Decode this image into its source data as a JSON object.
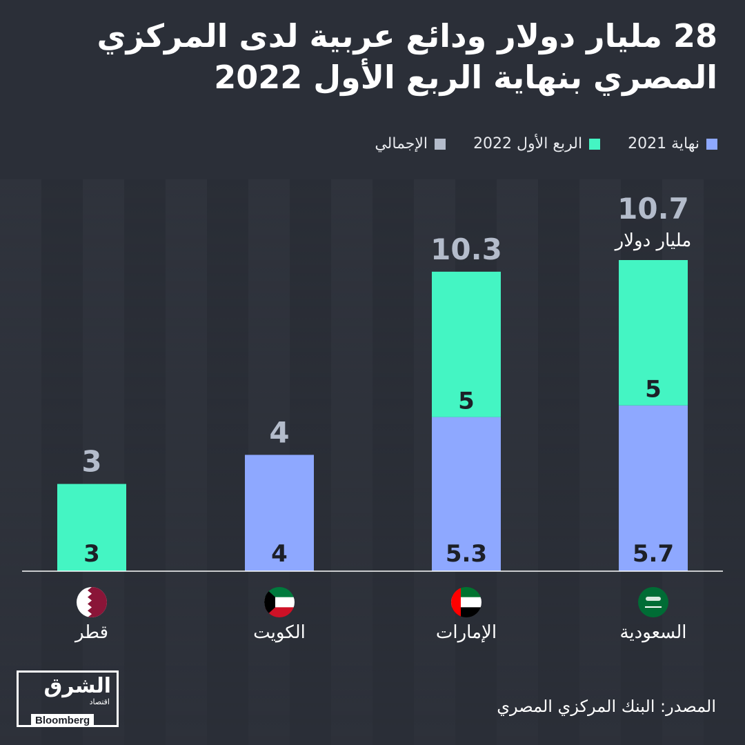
{
  "title": "28 مليار دولار ودائع عربية لدى المركزي المصري بنهاية الربع الأول 2022",
  "legend": {
    "end_2021": "نهاية 2021",
    "q1_2022": "الربع الأول 2022",
    "total": "الإجمالي"
  },
  "colors": {
    "end_2021": "#8ea8ff",
    "q1_2022": "#44f5c3",
    "total": "#b4bccb",
    "background": "#2b2f38"
  },
  "unit_label": "مليار دولار",
  "source": "المصدر: البنك المركزي المصري",
  "logo": {
    "arabic": "الشرق",
    "sub": "اقتصاد",
    "bloomberg": "Bloomberg"
  },
  "chart_data": {
    "type": "bar",
    "stacked": true,
    "categories": [
      "قطر",
      "الكويت",
      "الإمارات",
      "السعودية"
    ],
    "flags": [
      "qatar-flag",
      "kuwait-flag",
      "uae-flag",
      "saudi-flag"
    ],
    "series": [
      {
        "name": "نهاية 2021",
        "values": [
          0,
          4,
          5.3,
          5.7
        ],
        "labels": [
          "",
          "4",
          "5.3",
          "5.7"
        ]
      },
      {
        "name": "الربع الأول 2022",
        "values": [
          3,
          0,
          5,
          5
        ],
        "labels": [
          "3",
          "",
          "5",
          "5"
        ]
      }
    ],
    "totals": [
      3,
      4,
      10.3,
      10.7
    ],
    "total_labels": [
      "3",
      "4",
      "10.3",
      "10.7"
    ],
    "ylim": [
      0,
      10.7
    ]
  }
}
